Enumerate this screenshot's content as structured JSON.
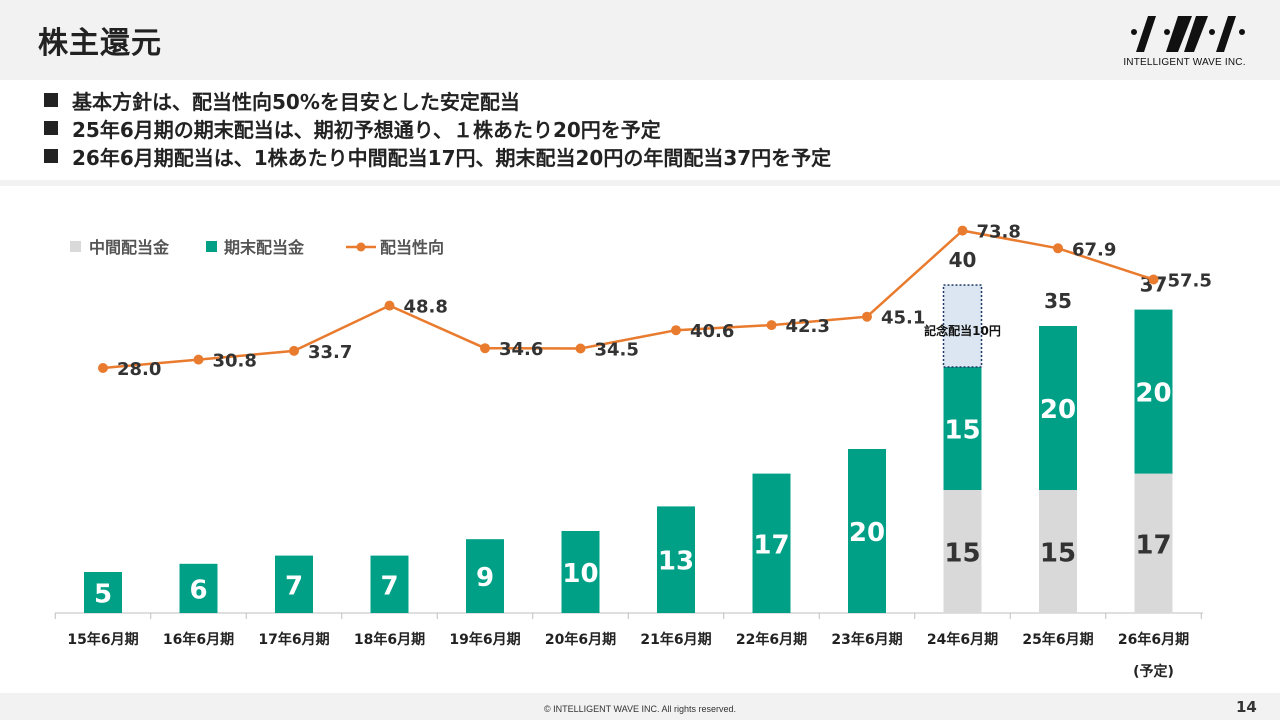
{
  "slide": {
    "title": "株主還元",
    "bullets": [
      "基本方針は、配当性向50%を目安とした安定配当",
      "25年6月期の期末配当は、期初予想通り、１株あたり20円を予定",
      "26年6月期配当は、1株あたり中間配当17円、期末配当20円の年間配当37円を予定"
    ],
    "page_number": "14",
    "copyright": "© INTELLIGENT WAVE INC. All rights reserved.",
    "logo_text": "INTELLIGENT WAVE INC."
  },
  "colors": {
    "interim": "#d9d9d9",
    "year_end": "#00a087",
    "payout_line": "#e97b2e",
    "commemorative_fill": "#dce6f2",
    "commemorative_border": "#1f3864",
    "text_dark": "#333333",
    "band_gray": "#f2f2f2"
  },
  "chart_data": {
    "type": "bar",
    "stacked": true,
    "categories": [
      "15年6月期",
      "16年6月期",
      "17年6月期",
      "18年6月期",
      "19年6月期",
      "20年6月期",
      "21年6月期",
      "22年6月期",
      "23年6月期",
      "24年6月期",
      "25年6月期",
      "26年6月期"
    ],
    "category_sublabels": [
      "",
      "",
      "",
      "",
      "",
      "",
      "",
      "",
      "",
      "",
      "",
      "(予定)"
    ],
    "series": [
      {
        "name": "中間配当金",
        "type": "bar",
        "values": [
          null,
          null,
          null,
          null,
          null,
          null,
          null,
          null,
          null,
          15,
          15,
          17
        ]
      },
      {
        "name": "期末配当金",
        "type": "bar",
        "values": [
          5,
          6,
          7,
          7,
          9,
          10,
          13,
          17,
          20,
          15,
          20,
          20
        ]
      },
      {
        "name": "配当性向",
        "type": "line",
        "values": [
          28.0,
          30.8,
          33.7,
          48.8,
          34.6,
          34.5,
          40.6,
          42.3,
          45.1,
          73.8,
          67.9,
          57.5
        ]
      }
    ],
    "value_labels": {
      "interim": [
        "",
        "",
        "",
        "",
        "",
        "",
        "",
        "",
        "",
        "15",
        "15",
        "17"
      ],
      "year_end": [
        "5",
        "6",
        "7",
        "7",
        "9",
        "10",
        "13",
        "17",
        "20",
        "15",
        "20",
        "20"
      ],
      "payout": [
        "28.0",
        "30.8",
        "33.7",
        "48.8",
        "34.6",
        "34.5",
        "40.6",
        "42.3",
        "45.1",
        "73.8",
        "67.9",
        "57.5"
      ]
    },
    "commemorative": {
      "category_index": 9,
      "value": 10,
      "label": "記念配当10円"
    },
    "totals": [
      {
        "index": 9,
        "label": "40"
      },
      {
        "index": 10,
        "label": "35"
      },
      {
        "index": 11,
        "label": "37"
      }
    ],
    "bar_ylim": [
      0,
      45
    ],
    "line_ylim": [
      0,
      80
    ],
    "legend_position": "top-left",
    "grid": false
  }
}
